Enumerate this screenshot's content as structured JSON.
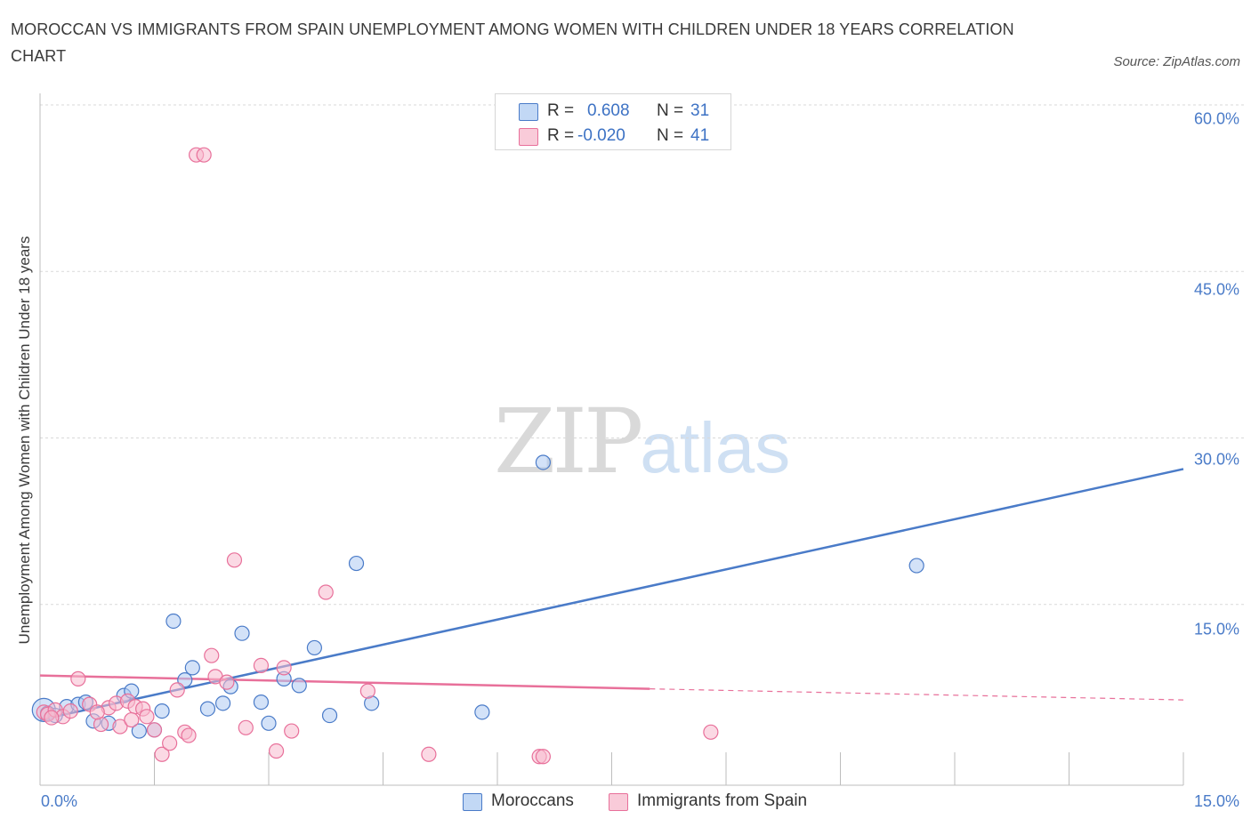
{
  "title": "MOROCCAN VS IMMIGRANTS FROM SPAIN UNEMPLOYMENT AMONG WOMEN WITH CHILDREN UNDER 18 YEARS CORRELATION CHART",
  "source": "Source: ZipAtlas.com",
  "watermark": {
    "part1": "ZIP",
    "part2": "atlas"
  },
  "colors": {
    "blue": "#4a7bc8",
    "blue_fill": "#aecbf2",
    "pink": "#e8709a",
    "pink_fill": "#f7b9cd",
    "grid": "#d9d9d9"
  },
  "legend": {
    "rows": [
      {
        "r_label": "R =",
        "r_value": "0.608",
        "n_label": "N =",
        "n_value": "31",
        "series": "Moroccans"
      },
      {
        "r_label": "R =",
        "r_value": "-0.020",
        "n_label": "N =",
        "n_value": "41",
        "series": "Immigrants from Spain"
      }
    ]
  },
  "chart_data": {
    "type": "scatter",
    "title": "MOROCCAN VS IMMIGRANTS FROM SPAIN UNEMPLOYMENT AMONG WOMEN WITH CHILDREN UNDER 18 YEARS CORRELATION CHART",
    "xlabel": "",
    "ylabel": "Unemployment Among Women with Children Under 18 years",
    "xlim": [
      0,
      15
    ],
    "ylim": [
      0,
      60
    ],
    "x_tick_labels": [
      "0.0%",
      "15.0%"
    ],
    "y_ticks": [
      15,
      30,
      45,
      60
    ],
    "y_tick_labels": [
      "15.0%",
      "30.0%",
      "45.0%",
      "60.0%"
    ],
    "grid": true,
    "series": [
      {
        "name": "Moroccans",
        "color": "#4a7bc8",
        "points": [
          [
            0.05,
            5.5
          ],
          [
            0.1,
            5.2
          ],
          [
            0.2,
            5.0
          ],
          [
            0.35,
            5.8
          ],
          [
            0.5,
            6.0
          ],
          [
            0.6,
            6.2
          ],
          [
            0.7,
            4.5
          ],
          [
            0.9,
            4.3
          ],
          [
            1.1,
            6.8
          ],
          [
            1.2,
            7.2
          ],
          [
            1.3,
            3.6
          ],
          [
            1.5,
            3.7
          ],
          [
            1.6,
            5.4
          ],
          [
            1.75,
            13.5
          ],
          [
            1.9,
            8.2
          ],
          [
            2.0,
            9.3
          ],
          [
            2.2,
            5.6
          ],
          [
            2.4,
            6.1
          ],
          [
            2.5,
            7.6
          ],
          [
            2.65,
            12.4
          ],
          [
            2.9,
            6.2
          ],
          [
            3.0,
            4.3
          ],
          [
            3.2,
            8.3
          ],
          [
            3.4,
            7.7
          ],
          [
            3.6,
            11.1
          ],
          [
            3.8,
            5.0
          ],
          [
            4.15,
            18.7
          ],
          [
            4.35,
            6.1
          ],
          [
            5.8,
            5.3
          ],
          [
            6.6,
            27.8
          ],
          [
            11.5,
            18.5
          ]
        ],
        "trend": {
          "x0": 0,
          "y0": 4.6,
          "x1": 15,
          "y1": 27.2
        }
      },
      {
        "name": "Immigrants from Spain",
        "color": "#e8709a",
        "points": [
          [
            0.05,
            5.3
          ],
          [
            0.1,
            5.1
          ],
          [
            0.2,
            5.5
          ],
          [
            0.3,
            4.9
          ],
          [
            0.4,
            5.4
          ],
          [
            0.5,
            8.3
          ],
          [
            0.65,
            6.0
          ],
          [
            0.8,
            4.2
          ],
          [
            0.9,
            5.7
          ],
          [
            1.0,
            6.1
          ],
          [
            1.05,
            4.0
          ],
          [
            1.15,
            6.3
          ],
          [
            1.25,
            5.8
          ],
          [
            1.35,
            5.6
          ],
          [
            1.4,
            4.9
          ],
          [
            1.5,
            3.7
          ],
          [
            1.6,
            1.5
          ],
          [
            1.7,
            2.5
          ],
          [
            1.8,
            7.3
          ],
          [
            1.9,
            3.5
          ],
          [
            1.95,
            3.2
          ],
          [
            2.05,
            55.5
          ],
          [
            2.15,
            55.5
          ],
          [
            2.25,
            10.4
          ],
          [
            2.3,
            8.5
          ],
          [
            2.45,
            8.0
          ],
          [
            2.55,
            19.0
          ],
          [
            2.7,
            3.9
          ],
          [
            2.9,
            9.5
          ],
          [
            3.1,
            1.8
          ],
          [
            3.2,
            9.3
          ],
          [
            3.3,
            3.6
          ],
          [
            3.75,
            16.1
          ],
          [
            4.3,
            7.2
          ],
          [
            5.1,
            1.5
          ],
          [
            6.55,
            1.3
          ],
          [
            6.6,
            1.3
          ],
          [
            8.8,
            3.5
          ],
          [
            0.15,
            4.8
          ],
          [
            0.75,
            5.3
          ],
          [
            1.2,
            4.6
          ]
        ],
        "trend_solid": {
          "x0": 0,
          "y0": 8.6,
          "x1": 8.0,
          "y1": 7.4
        },
        "trend_dashed": {
          "x0": 8.0,
          "y0": 7.4,
          "x1": 15,
          "y1": 6.4
        }
      }
    ]
  }
}
